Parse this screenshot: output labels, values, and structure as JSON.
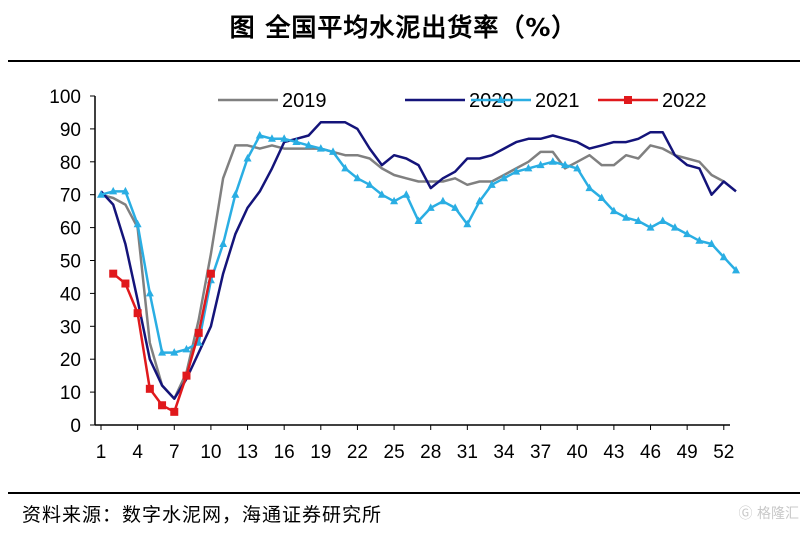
{
  "header": {
    "title": "图  全国平均水泥出货率（%）"
  },
  "footer": {
    "source": "资料来源：数字水泥网，海通证券研究所",
    "watermark": "格隆汇"
  },
  "chart_data": {
    "type": "line",
    "title": "图  全国平均水泥出货率（%）",
    "xlabel": "",
    "ylabel": "",
    "xlim": [
      1,
      53
    ],
    "ylim": [
      0,
      100
    ],
    "x_ticks": [
      1,
      4,
      7,
      10,
      13,
      16,
      19,
      22,
      25,
      28,
      31,
      34,
      37,
      40,
      43,
      46,
      49,
      52
    ],
    "y_ticks": [
      0,
      10,
      20,
      30,
      40,
      50,
      60,
      70,
      80,
      90,
      100
    ],
    "legend_position": "top",
    "series": [
      {
        "name": "2019",
        "color": "#808080",
        "marker": "none",
        "points": [
          [
            1,
            70
          ],
          [
            2,
            69
          ],
          [
            3,
            67
          ],
          [
            4,
            60
          ],
          [
            5,
            25
          ],
          [
            6,
            12
          ],
          [
            7,
            8
          ],
          [
            8,
            16
          ],
          [
            9,
            32
          ],
          [
            10,
            52
          ],
          [
            11,
            75
          ],
          [
            12,
            85
          ],
          [
            13,
            85
          ],
          [
            14,
            84
          ],
          [
            15,
            85
          ],
          [
            16,
            84
          ],
          [
            17,
            84
          ],
          [
            18,
            84
          ],
          [
            19,
            84
          ],
          [
            20,
            83
          ],
          [
            21,
            82
          ],
          [
            22,
            82
          ],
          [
            23,
            81
          ],
          [
            24,
            78
          ],
          [
            25,
            76
          ],
          [
            26,
            75
          ],
          [
            27,
            74
          ],
          [
            28,
            74
          ],
          [
            29,
            74
          ],
          [
            30,
            75
          ],
          [
            31,
            73
          ],
          [
            32,
            74
          ],
          [
            33,
            74
          ],
          [
            34,
            76
          ],
          [
            35,
            78
          ],
          [
            36,
            80
          ],
          [
            37,
            83
          ],
          [
            38,
            83
          ],
          [
            39,
            78
          ],
          [
            40,
            80
          ],
          [
            41,
            82
          ],
          [
            42,
            79
          ],
          [
            43,
            79
          ],
          [
            44,
            82
          ],
          [
            45,
            81
          ],
          [
            46,
            85
          ],
          [
            47,
            84
          ],
          [
            48,
            82
          ],
          [
            49,
            81
          ],
          [
            50,
            80
          ],
          [
            51,
            76
          ],
          [
            52,
            74
          ]
        ]
      },
      {
        "name": "2020",
        "color": "#14147a",
        "marker": "none",
        "points": [
          [
            1,
            71
          ],
          [
            2,
            67
          ],
          [
            3,
            55
          ],
          [
            4,
            38
          ],
          [
            5,
            20
          ],
          [
            6,
            12
          ],
          [
            7,
            8
          ],
          [
            8,
            14
          ],
          [
            9,
            22
          ],
          [
            10,
            30
          ],
          [
            11,
            46
          ],
          [
            12,
            58
          ],
          [
            13,
            66
          ],
          [
            14,
            71
          ],
          [
            15,
            78
          ],
          [
            16,
            86
          ],
          [
            17,
            87
          ],
          [
            18,
            88
          ],
          [
            19,
            92
          ],
          [
            20,
            92
          ],
          [
            21,
            92
          ],
          [
            22,
            90
          ],
          [
            23,
            84
          ],
          [
            24,
            79
          ],
          [
            25,
            82
          ],
          [
            26,
            81
          ],
          [
            27,
            79
          ],
          [
            28,
            72
          ],
          [
            29,
            75
          ],
          [
            30,
            77
          ],
          [
            31,
            81
          ],
          [
            32,
            81
          ],
          [
            33,
            82
          ],
          [
            34,
            84
          ],
          [
            35,
            86
          ],
          [
            36,
            87
          ],
          [
            37,
            87
          ],
          [
            38,
            88
          ],
          [
            39,
            87
          ],
          [
            40,
            86
          ],
          [
            41,
            84
          ],
          [
            42,
            85
          ],
          [
            43,
            86
          ],
          [
            44,
            86
          ],
          [
            45,
            87
          ],
          [
            46,
            89
          ],
          [
            47,
            89
          ],
          [
            48,
            82
          ],
          [
            49,
            79
          ],
          [
            50,
            78
          ],
          [
            51,
            70
          ],
          [
            52,
            74
          ],
          [
            53,
            71
          ]
        ]
      },
      {
        "name": "2021",
        "color": "#2aaee3",
        "marker": "triangle",
        "points": [
          [
            1,
            70
          ],
          [
            2,
            71
          ],
          [
            3,
            71
          ],
          [
            4,
            61
          ],
          [
            5,
            40
          ],
          [
            6,
            22
          ],
          [
            7,
            22
          ],
          [
            8,
            23
          ],
          [
            9,
            25
          ],
          [
            10,
            44
          ],
          [
            11,
            55
          ],
          [
            12,
            70
          ],
          [
            13,
            81
          ],
          [
            14,
            88
          ],
          [
            15,
            87
          ],
          [
            16,
            87
          ],
          [
            17,
            86
          ],
          [
            18,
            85
          ],
          [
            19,
            84
          ],
          [
            20,
            83
          ],
          [
            21,
            78
          ],
          [
            22,
            75
          ],
          [
            23,
            73
          ],
          [
            24,
            70
          ],
          [
            25,
            68
          ],
          [
            26,
            70
          ],
          [
            27,
            62
          ],
          [
            28,
            66
          ],
          [
            29,
            68
          ],
          [
            30,
            66
          ],
          [
            31,
            61
          ],
          [
            32,
            68
          ],
          [
            33,
            73
          ],
          [
            34,
            75
          ],
          [
            35,
            77
          ],
          [
            36,
            78
          ],
          [
            37,
            79
          ],
          [
            38,
            80
          ],
          [
            39,
            79
          ],
          [
            40,
            78
          ],
          [
            41,
            72
          ],
          [
            42,
            69
          ],
          [
            43,
            65
          ],
          [
            44,
            63
          ],
          [
            45,
            62
          ],
          [
            46,
            60
          ],
          [
            47,
            62
          ],
          [
            48,
            60
          ],
          [
            49,
            58
          ],
          [
            50,
            56
          ],
          [
            51,
            55
          ],
          [
            52,
            51
          ],
          [
            53,
            47
          ]
        ]
      },
      {
        "name": "2022",
        "color": "#e0191c",
        "marker": "square",
        "points": [
          [
            2,
            46
          ],
          [
            3,
            43
          ],
          [
            4,
            34
          ],
          [
            5,
            11
          ],
          [
            6,
            6
          ],
          [
            7,
            4
          ],
          [
            8,
            15
          ],
          [
            9,
            28
          ],
          [
            10,
            46
          ]
        ]
      }
    ]
  }
}
